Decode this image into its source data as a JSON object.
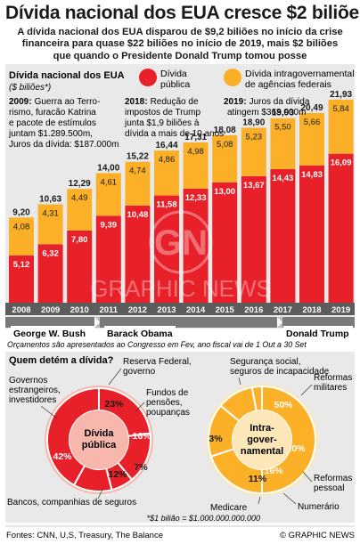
{
  "header": {
    "title": "Dívida nacional dos EUA cresce $2 biliões",
    "subtitle_lines": [
      "A dívida nacional dos EUA disparou de $9,2 biliões no início da crise",
      "financeira para quase $22 biliões no início de 2019, mais $2 biliões",
      "que quando o Presidente Donald Trump tomou posse"
    ]
  },
  "colors": {
    "public": "#e8202a",
    "intragov": "#fbb028",
    "public_dark": "#c9151d",
    "intragov_dark": "#e0901a",
    "pie_public_bg": "#f7b7ad",
    "pie_intra_bg": "#fde7b8",
    "axis_bar": "#5c5c5c",
    "pres_bar": "#7a7a7a"
  },
  "chart_data": [
    {
      "type": "bar",
      "stacked": true,
      "title": "Dívida nacional dos EUA",
      "ylabel": "($ biliões*)",
      "categories": [
        "2008",
        "2009",
        "2010",
        "2011",
        "2012",
        "2013",
        "2014",
        "2015",
        "2016",
        "2017",
        "2018",
        "2019"
      ],
      "series": [
        {
          "name": "Dívida pública",
          "values": [
            5.12,
            6.32,
            7.8,
            9.39,
            10.48,
            11.58,
            12.33,
            13.0,
            13.67,
            14.43,
            14.83,
            16.09
          ]
        },
        {
          "name": "Dívida intragovernamental de agências federais",
          "values": [
            4.08,
            4.31,
            4.49,
            4.61,
            4.74,
            4.86,
            4.98,
            5.08,
            5.23,
            5.5,
            5.66,
            5.84
          ]
        }
      ],
      "value_labels": {
        "public": [
          "5,12",
          "6,32",
          "7,80",
          "9,39",
          "10,48",
          "11,58",
          "12,33",
          "13,00",
          "13,67",
          "14,43",
          "14,83",
          "16,09"
        ],
        "intragov": [
          "4,08",
          "4,31",
          "4,49",
          "4,61",
          "4,74",
          "4,86",
          "4,98",
          "5,08",
          "5,23",
          "5,50",
          "5,66",
          "5,84"
        ],
        "totals": [
          "9,20",
          "10,63",
          "12,29",
          "14,00",
          "15,22",
          "16,44",
          "17,31",
          "18,08",
          "18,90",
          "19,93",
          "20,49",
          "21,93"
        ]
      },
      "legend": [
        "Dívida pública",
        "Dívida intragovernamental de agências federais"
      ],
      "legend_placement": "top",
      "grid": false
    },
    {
      "type": "pie",
      "title": "Dívida pública",
      "slices": [
        {
          "label": "Reserva Federal, governo",
          "value": 23,
          "label_text": "23%"
        },
        {
          "label": "Fundos de pensões, poupanças",
          "value": 16,
          "label_text": "16%"
        },
        {
          "label": "Outros",
          "value": 7,
          "label_text": "7%"
        },
        {
          "label": "Bancos, companhias de seguros",
          "value": 12,
          "label_text": "12%"
        },
        {
          "label": "Governos estrangeiros, investidores",
          "value": 42,
          "label_text": "42%"
        }
      ]
    },
    {
      "type": "pie",
      "title": "Intra-governamental",
      "slices": [
        {
          "label": "Segurança social, seguros de incapacidade",
          "value": 50,
          "label_text": "50%"
        },
        {
          "label": "Reformas militares",
          "value": 20,
          "label_text": "20%"
        },
        {
          "label": "Reformas pessoal",
          "value": 16,
          "label_text": "16%"
        },
        {
          "label": "Numerário",
          "value": 11,
          "label_text": "11%"
        },
        {
          "label": "Medicare",
          "value": 3,
          "label_text": "3%"
        }
      ]
    }
  ],
  "bar_chart": {
    "title": "Dívida nacional dos EUA",
    "unit": "($ biliões*)",
    "legend_public": [
      "Dívida",
      "pública"
    ],
    "legend_intragov": [
      "Dívida intragovernamental",
      "de agências federais"
    ]
  },
  "annotations": {
    "a2009": {
      "year": "2009:",
      "lines": [
        "Guerra ao Terro-",
        "rismo, furacão Katrina",
        "e pacote de estímulos",
        "juntam $1.289.500m,",
        "Juros da dívida: $187.000m"
      ]
    },
    "a2018": {
      "year": "2018:",
      "lines": [
        "Redução de",
        "impostos de Trump",
        "junta $1,9 biliões à",
        "dívida a mais de 10 anos"
      ]
    },
    "a2019": {
      "year": "2019:",
      "lines": [
        "Juros da dívida",
        "atingem $363.000m"
      ]
    }
  },
  "presidents": [
    "George W. Bush",
    "Barack Obama",
    "Donald Trump"
  ],
  "budget_note": "Orçamentos são apresentados ao Congresso em Fev, ano fiscal vai de 1 Out a 30 Set",
  "pies_section": {
    "question": "Quem detém a dívida?",
    "public_center": [
      "Dívida",
      "pública"
    ],
    "intra_center": [
      "Intra-",
      "gover-",
      "namental"
    ],
    "public_labels": {
      "reserva": [
        "Reserva Federal,",
        "governo"
      ],
      "fundos": [
        "Fundos de",
        "pensões,",
        "poupanças"
      ],
      "governos": [
        "Governos",
        "estrangeiros,",
        "investidores"
      ],
      "outros": "Outros",
      "bancos": "Bancos, companhias de seguros"
    },
    "intra_labels": {
      "seguranca": [
        "Segurança social,",
        "seguros de incapacidade"
      ],
      "militares": [
        "Reformas",
        "militares"
      ],
      "pessoal": [
        "Reformas",
        "pessoal"
      ],
      "numerario": "Numerário",
      "medicare": "Medicare"
    }
  },
  "footnote": "*$1 bilião = $1.000.000.000.000",
  "footer": {
    "sources": "Fontes: CNN, U,S, Treasury, The Balance",
    "credit": "© GRAPHIC NEWS"
  },
  "watermark": "GRAPHIC NEWS"
}
